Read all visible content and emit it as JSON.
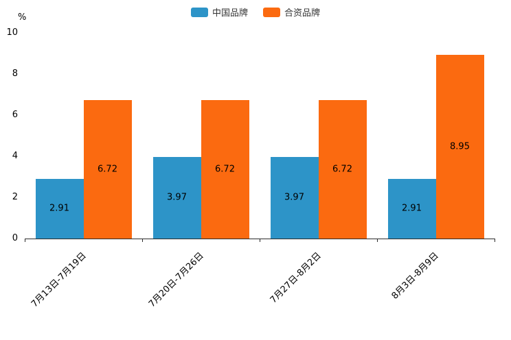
{
  "chart_data": {
    "type": "bar",
    "title": "",
    "unit": "%",
    "categories": [
      "7月13日-7月19日",
      "7月20日-7月26日",
      "7月27日-8月2日",
      "8月3日-8月9日"
    ],
    "series": [
      {
        "name": "中国品牌",
        "color": "#2D94C8",
        "values": [
          2.91,
          3.97,
          3.97,
          2.91
        ]
      },
      {
        "name": "合资品牌",
        "color": "#FB6A10",
        "values": [
          6.72,
          6.72,
          6.72,
          8.95
        ]
      }
    ],
    "ylim": [
      0,
      10
    ],
    "yticks": [
      0,
      2,
      4,
      6,
      8,
      10
    ],
    "grid": false,
    "legend_position": "top",
    "value_labels": "inside-middle"
  }
}
